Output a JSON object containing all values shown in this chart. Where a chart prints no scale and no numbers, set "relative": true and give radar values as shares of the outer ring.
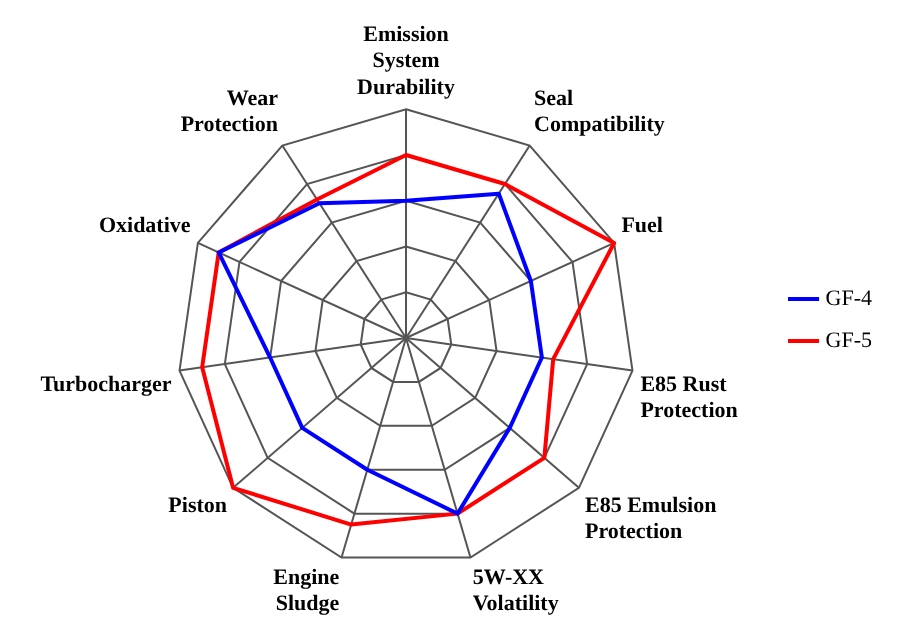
{
  "chart_data": {
    "type": "radar",
    "relative": true,
    "grid": true,
    "legend": "right",
    "line_style": "solid",
    "marker": "none",
    "categories": [
      "Emission System Durability",
      "Seal Compatibility",
      "Fuel",
      "E85 Rust Protection",
      "E85 Emulsion Protection",
      "5W-XX Volatility",
      "Engine Sludge",
      "Piston",
      "Turbocharger",
      "Oxidative",
      "Wear Protection"
    ],
    "series": [
      {
        "name": "GF-4",
        "color": "#0000ff",
        "values": [
          0.6,
          0.75,
          0.6,
          0.6,
          0.6,
          0.8,
          0.6,
          0.6,
          0.6,
          0.9,
          0.7
        ]
      },
      {
        "name": "GF-5",
        "color": "#ff0000",
        "values": [
          0.8,
          0.8,
          1.0,
          0.65,
          0.8,
          0.8,
          0.85,
          1.0,
          0.9,
          0.9,
          0.72
        ]
      }
    ]
  }
}
